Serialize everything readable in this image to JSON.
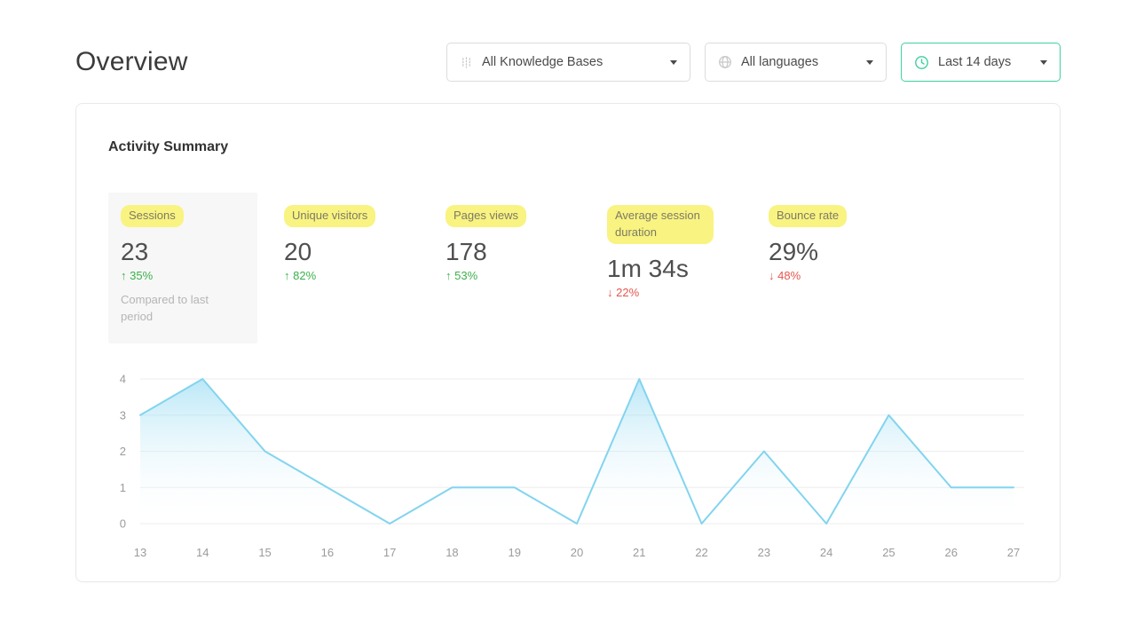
{
  "page": {
    "title": "Overview"
  },
  "filters": {
    "knowledge_bases": {
      "label": "All Knowledge Bases",
      "icon": "knowledge-base-icon"
    },
    "languages": {
      "label": "All languages",
      "icon": "globe-icon"
    },
    "date_range": {
      "label": "Last 14 days",
      "icon": "clock-icon"
    }
  },
  "card": {
    "title": "Activity Summary"
  },
  "metrics": [
    {
      "label": "Sessions",
      "value": "23",
      "change": "↑ 35%",
      "trend": "up",
      "note": "Compared to last period"
    },
    {
      "label": "Unique visitors",
      "value": "20",
      "change": "↑ 82%",
      "trend": "up"
    },
    {
      "label": "Pages views",
      "value": "178",
      "change": "↑ 53%",
      "trend": "up"
    },
    {
      "label": "Average session duration",
      "value": "1m 34s",
      "change": "↓ 22%",
      "trend": "down"
    },
    {
      "label": "Bounce rate",
      "value": "29%",
      "change": "↓ 48%",
      "trend": "down"
    }
  ],
  "chart_data": {
    "type": "area",
    "title": "",
    "xlabel": "",
    "ylabel": "",
    "x": [
      13,
      14,
      15,
      16,
      17,
      18,
      19,
      20,
      21,
      22,
      23,
      24,
      25,
      26,
      27
    ],
    "values": [
      3,
      4,
      2,
      1,
      0,
      1,
      1,
      0,
      4,
      0,
      2,
      0,
      3,
      1,
      1
    ],
    "ylim": [
      0,
      4
    ],
    "yticks": [
      0,
      1,
      2,
      3,
      4
    ],
    "grid": true,
    "legend": "none",
    "line_color": "#82d4ef",
    "fill_top": "rgba(130,212,240,0.55)",
    "fill_bottom": "rgba(255,255,255,0)"
  },
  "colors": {
    "highlight_yellow": "#f9f382",
    "positive_green": "#3cb14b",
    "negative_red": "#e4574e",
    "date_filter_border": "#3fd0a0"
  }
}
